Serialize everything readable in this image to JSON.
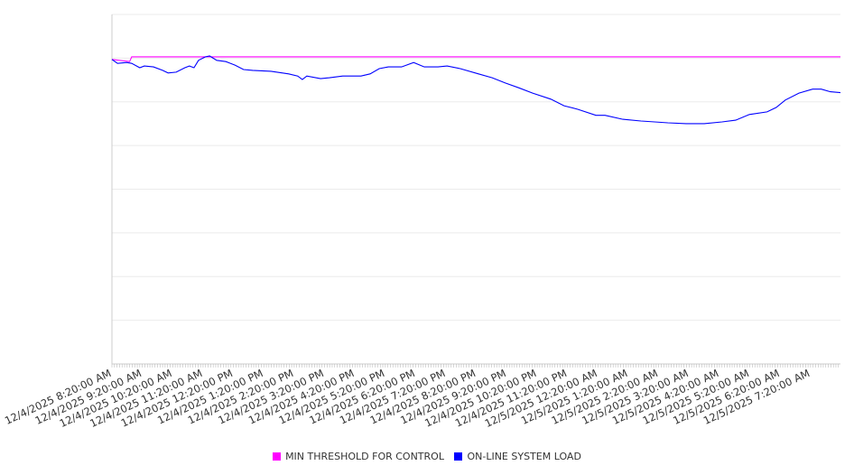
{
  "chart_data": {
    "type": "line",
    "title": "",
    "xlabel": "",
    "ylabel": "",
    "x_unit": "minutes since 12/4/2025 8:20:00 AM",
    "xlim": [
      0,
      1439
    ],
    "ylim": [
      0,
      80
    ],
    "y_grid_step": 10,
    "grid": true,
    "y_tick_labels_visible": false,
    "legend_position": "bottom",
    "x_tick_labels": [
      "12/4/2025 8:20:00 AM",
      "12/4/2025 9:20:00 AM",
      "12/4/2025 10:20:00 AM",
      "12/4/2025 11:20:00 AM",
      "12/4/2025 12:20:00 PM",
      "12/4/2025 1:20:00 PM",
      "12/4/2025 2:20:00 PM",
      "12/4/2025 3:20:00 PM",
      "12/4/2025 4:20:00 PM",
      "12/4/2025 5:20:00 PM",
      "12/4/2025 6:20:00 PM",
      "12/4/2025 7:20:00 PM",
      "12/4/2025 8:20:00 PM",
      "12/4/2025 9:20:00 PM",
      "12/4/2025 10:20:00 PM",
      "12/4/2025 11:20:00 PM",
      "12/5/2025 12:20:00 AM",
      "12/5/2025 1:20:00 AM",
      "12/5/2025 2:20:00 AM",
      "12/5/2025 3:20:00 AM",
      "12/5/2025 4:20:00 AM",
      "12/5/2025 5:20:00 AM",
      "12/5/2025 6:20:00 AM",
      "12/5/2025 7:20:00 AM"
    ],
    "series": [
      {
        "name": "MIN THRESHOLD FOR CONTROL",
        "color": "#ff00ff",
        "points": [
          [
            0,
            69.7
          ],
          [
            35,
            69.2
          ],
          [
            39,
            70.3
          ],
          [
            1439,
            70.3
          ]
        ]
      },
      {
        "name": "ON-LINE SYSTEM LOAD",
        "color": "#0000ff",
        "points": [
          [
            0,
            69.7
          ],
          [
            11,
            68.8
          ],
          [
            29,
            69.0
          ],
          [
            39,
            68.8
          ],
          [
            55,
            67.8
          ],
          [
            64,
            68.2
          ],
          [
            82,
            68.0
          ],
          [
            100,
            67.2
          ],
          [
            111,
            66.6
          ],
          [
            127,
            66.8
          ],
          [
            144,
            67.8
          ],
          [
            153,
            68.2
          ],
          [
            162,
            67.8
          ],
          [
            171,
            69.5
          ],
          [
            185,
            70.3
          ],
          [
            193,
            70.5
          ],
          [
            207,
            69.5
          ],
          [
            225,
            69.2
          ],
          [
            243,
            68.4
          ],
          [
            260,
            67.4
          ],
          [
            278,
            67.2
          ],
          [
            314,
            67.0
          ],
          [
            349,
            66.4
          ],
          [
            367,
            65.9
          ],
          [
            376,
            65.1
          ],
          [
            385,
            65.9
          ],
          [
            412,
            65.3
          ],
          [
            430,
            65.5
          ],
          [
            456,
            65.9
          ],
          [
            492,
            65.9
          ],
          [
            510,
            66.4
          ],
          [
            528,
            67.6
          ],
          [
            546,
            68.0
          ],
          [
            572,
            68.0
          ],
          [
            596,
            69.0
          ],
          [
            617,
            68.0
          ],
          [
            644,
            68.0
          ],
          [
            662,
            68.2
          ],
          [
            688,
            67.6
          ],
          [
            724,
            66.4
          ],
          [
            751,
            65.5
          ],
          [
            777,
            64.3
          ],
          [
            804,
            63.2
          ],
          [
            831,
            62.0
          ],
          [
            867,
            60.6
          ],
          [
            893,
            59.1
          ],
          [
            920,
            58.3
          ],
          [
            956,
            56.9
          ],
          [
            974,
            56.9
          ],
          [
            1009,
            56.0
          ],
          [
            1045,
            55.6
          ],
          [
            1072,
            55.4
          ],
          [
            1098,
            55.2
          ],
          [
            1134,
            55.0
          ],
          [
            1170,
            55.0
          ],
          [
            1205,
            55.4
          ],
          [
            1232,
            55.8
          ],
          [
            1259,
            57.1
          ],
          [
            1294,
            57.7
          ],
          [
            1312,
            58.7
          ],
          [
            1330,
            60.4
          ],
          [
            1357,
            62.0
          ],
          [
            1384,
            62.9
          ],
          [
            1401,
            62.9
          ],
          [
            1419,
            62.3
          ],
          [
            1439,
            62.1
          ]
        ]
      }
    ]
  }
}
